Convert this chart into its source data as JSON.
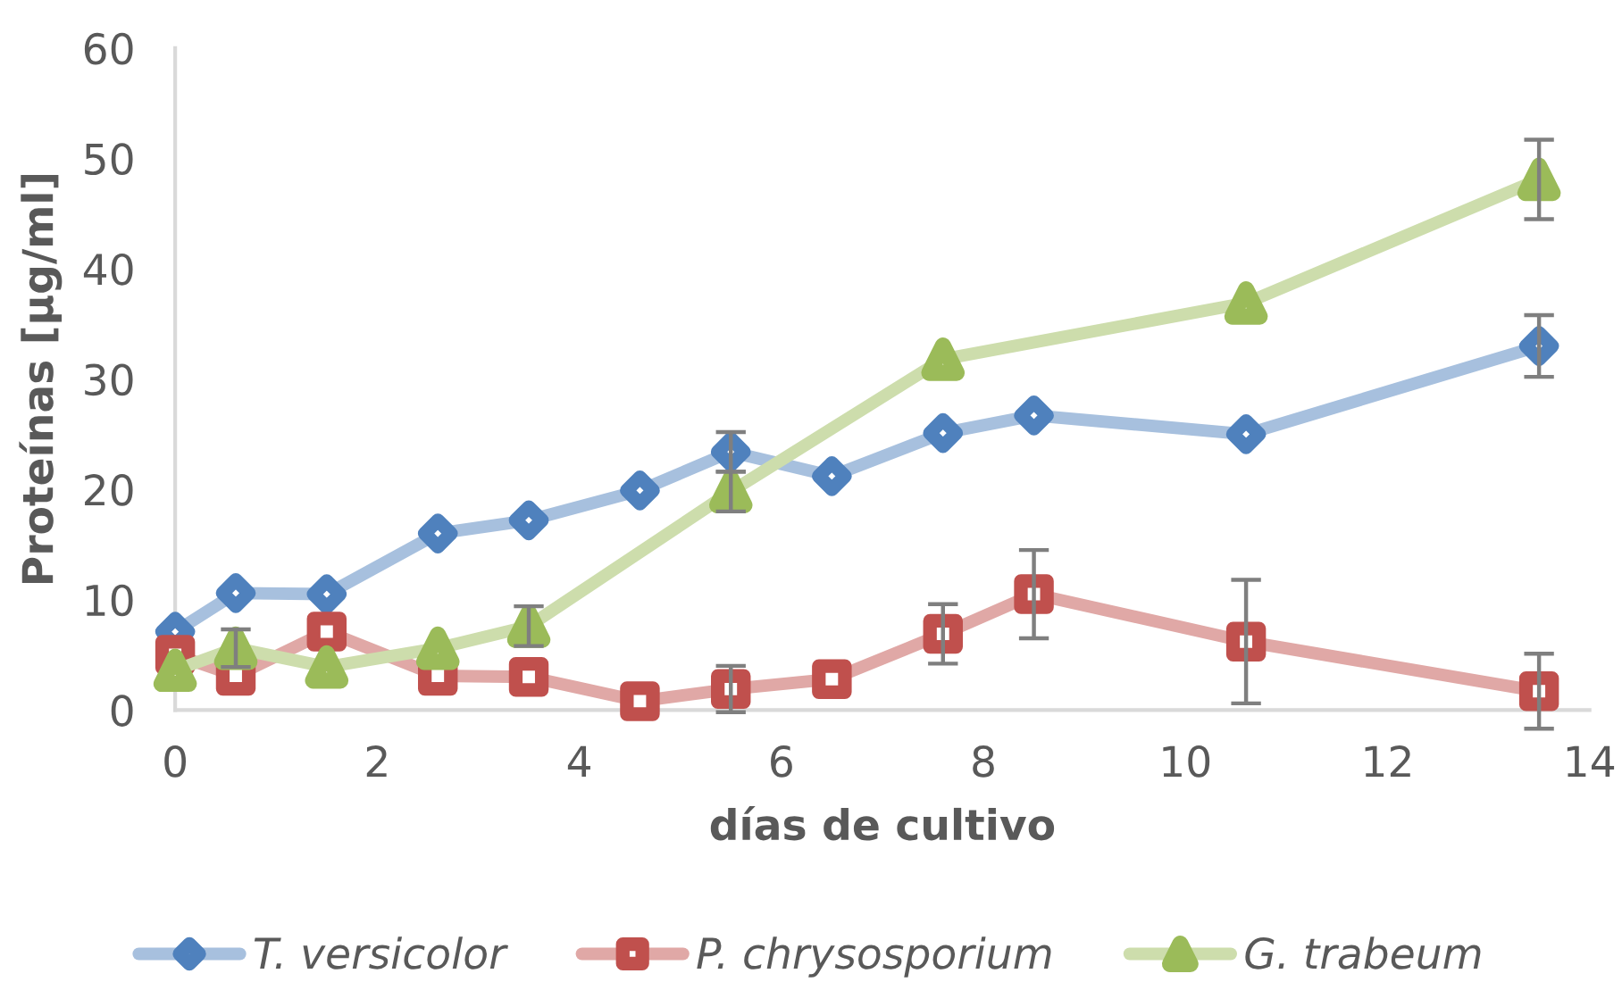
{
  "chart_data": {
    "type": "line",
    "xlabel": "días de cultivo",
    "ylabel": "Proteínas [µg/ml]",
    "xlim": [
      0,
      14
    ],
    "xticks": [
      0,
      2,
      4,
      6,
      8,
      10,
      12,
      14
    ],
    "ylim": [
      0,
      60
    ],
    "yticks": [
      0,
      10,
      20,
      30,
      40,
      50,
      60
    ],
    "legend": "bottom",
    "line_style": "solid",
    "series": [
      {
        "name": "T. versicolor",
        "color": "#4f81bd",
        "marker": "diamond",
        "x": [
          0,
          0.6,
          1.5,
          2.6,
          3.5,
          4.6,
          5.5,
          6.5,
          7.6,
          8.5,
          10.6,
          13.5
        ],
        "values": [
          7.1,
          10.6,
          10.5,
          16.0,
          17.2,
          19.9,
          23.4,
          21.2,
          25.1,
          26.7,
          25.0,
          33.0
        ],
        "errors": [
          null,
          null,
          null,
          null,
          null,
          null,
          1.8,
          null,
          null,
          null,
          null,
          2.8
        ]
      },
      {
        "name": "P. chrysosporium",
        "color": "#c0504d",
        "marker": "square",
        "x": [
          0,
          0.6,
          1.5,
          2.6,
          3.5,
          4.6,
          5.5,
          6.5,
          7.6,
          8.5,
          10.6,
          13.5
        ],
        "values": [
          5.0,
          3.1,
          7.1,
          3.1,
          3.0,
          0.8,
          1.9,
          2.8,
          6.9,
          10.5,
          6.2,
          1.7
        ],
        "errors": [
          null,
          null,
          null,
          null,
          null,
          null,
          2.1,
          null,
          2.7,
          4.0,
          5.6,
          3.4
        ]
      },
      {
        "name": "G. trabeum",
        "color": "#9bbb59",
        "marker": "triangle",
        "x": [
          0,
          0.6,
          1.5,
          2.6,
          3.5,
          5.5,
          7.6,
          10.6,
          13.5
        ],
        "values": [
          3.6,
          5.6,
          3.9,
          5.6,
          7.6,
          19.8,
          31.8,
          36.9,
          48.1
        ],
        "errors": [
          null,
          1.7,
          null,
          null,
          1.8,
          1.8,
          null,
          null,
          3.6
        ]
      }
    ]
  }
}
